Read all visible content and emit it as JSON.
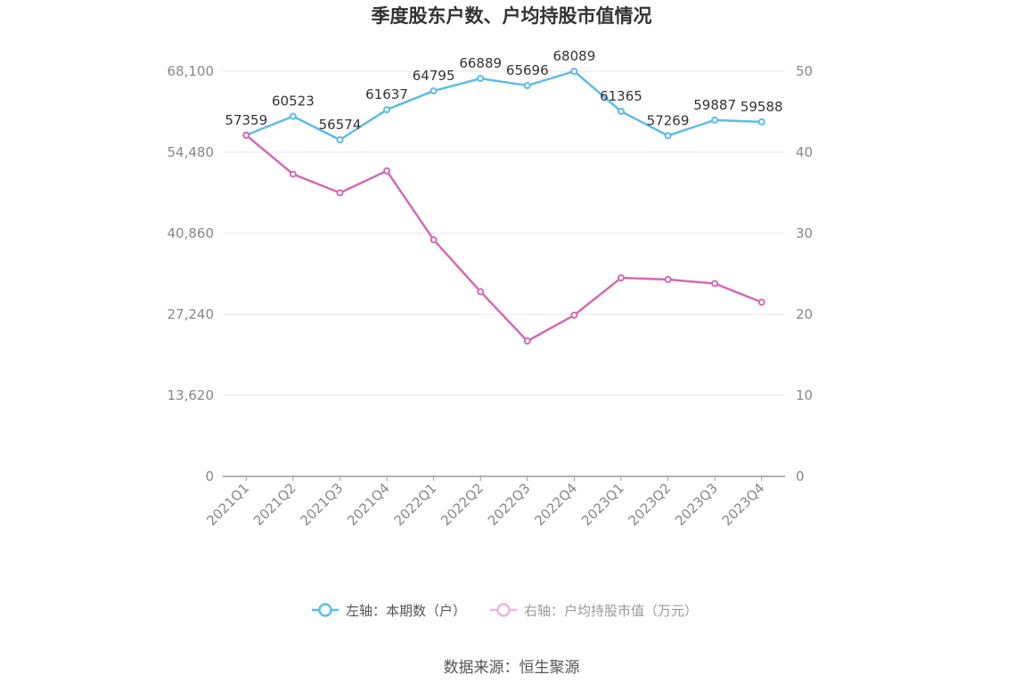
{
  "chart_data": {
    "type": "line",
    "title": "季度股东户数、户均持股市值情况",
    "categories": [
      "2021Q1",
      "2021Q2",
      "2021Q3",
      "2021Q4",
      "2022Q1",
      "2022Q2",
      "2022Q3",
      "2022Q4",
      "2023Q1",
      "2023Q2",
      "2023Q3",
      "2023Q4"
    ],
    "left_axis": {
      "ticks": [
        "0",
        "13,620",
        "27,240",
        "40,860",
        "54,480",
        "68,100"
      ],
      "min": 0,
      "max": 68100
    },
    "right_axis": {
      "ticks": [
        "0",
        "10",
        "20",
        "30",
        "40",
        "50"
      ],
      "min": 0,
      "max": 50
    },
    "series": [
      {
        "name": "左轴：本期数（户）",
        "axis": "left",
        "color": "#5bbde8",
        "values": [
          57359,
          60523,
          56574,
          61637,
          64795,
          66889,
          65696,
          68089,
          61365,
          57269,
          59887,
          59588
        ],
        "labels": [
          "57359",
          "60523",
          "56574",
          "61637",
          "64795",
          "66889",
          "65696",
          "68089",
          "61365",
          "57269",
          "59887",
          "59588"
        ]
      },
      {
        "name": "右轴：户均持股市值（万元）",
        "axis": "right",
        "color": "#d36bb2",
        "values": [
          42.1,
          37.3,
          35.0,
          37.7,
          29.2,
          22.8,
          16.7,
          19.9,
          24.5,
          24.3,
          23.8,
          21.5
        ]
      }
    ],
    "legend_position": "bottom",
    "grid": true
  },
  "source": "数据来源：恒生聚源"
}
